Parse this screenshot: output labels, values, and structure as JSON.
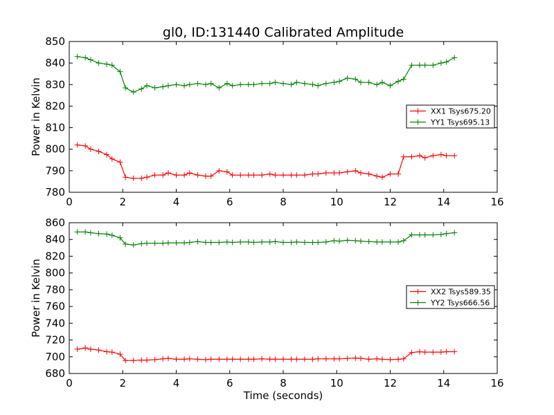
{
  "title": "gl0, ID:131440 Calibrated Amplitude",
  "chart_data": [
    {
      "type": "line",
      "title": "gl0, ID:131440 Calibrated Amplitude",
      "xlabel": "",
      "ylabel": "Power in Kelvin",
      "xlim": [
        0,
        16
      ],
      "ylim": [
        780,
        850
      ],
      "xticks": [
        0,
        2,
        4,
        6,
        8,
        10,
        12,
        14,
        16
      ],
      "yticks": [
        780,
        790,
        800,
        810,
        820,
        830,
        840,
        850
      ],
      "grid": false,
      "legend_position": "center-right",
      "x": [
        0.3,
        0.6,
        0.8,
        1.1,
        1.4,
        1.6,
        1.9,
        2.1,
        2.4,
        2.7,
        2.9,
        3.2,
        3.5,
        3.7,
        4.0,
        4.3,
        4.5,
        4.8,
        5.1,
        5.3,
        5.6,
        5.9,
        6.1,
        6.4,
        6.7,
        6.9,
        7.2,
        7.5,
        7.7,
        8.0,
        8.3,
        8.5,
        8.8,
        9.1,
        9.3,
        9.6,
        9.9,
        10.1,
        10.4,
        10.7,
        10.9,
        11.2,
        11.5,
        11.7,
        12.0,
        12.3,
        12.5,
        12.8,
        13.1,
        13.3,
        13.6,
        13.9,
        14.1,
        14.4
      ],
      "series": [
        {
          "name": "XX1 Tsys675.20",
          "color": "#ff0000",
          "values": [
            802,
            801.5,
            800,
            799,
            797.5,
            795.5,
            794,
            787,
            786.5,
            786.5,
            787,
            788,
            788,
            789,
            788,
            788,
            789,
            788,
            787.5,
            787.5,
            790,
            789.5,
            788,
            788,
            788,
            788,
            788,
            788.5,
            788,
            788,
            788,
            788,
            788,
            788.5,
            788.5,
            789,
            789,
            789,
            789.5,
            790,
            789,
            788.5,
            787.5,
            787,
            788.5,
            788.5,
            796.5,
            796.5,
            797,
            796,
            797,
            797.5,
            797,
            797
          ]
        },
        {
          "name": "YY1 Tsys695.13",
          "color": "#008000",
          "values": [
            843,
            842.5,
            841.5,
            840,
            839.5,
            839,
            836,
            828.5,
            826.5,
            828,
            829.5,
            828.5,
            829,
            829.5,
            830,
            829.5,
            830,
            830.5,
            830,
            830.5,
            828.5,
            830.5,
            829.5,
            830,
            830,
            830,
            830.5,
            830.5,
            831,
            830.5,
            830,
            831,
            830.5,
            830,
            829.5,
            830.5,
            831,
            831.5,
            833,
            832.5,
            831,
            831,
            830,
            831,
            829.5,
            831.5,
            832.5,
            839,
            839,
            839,
            839,
            840,
            840.5,
            842.5
          ]
        }
      ]
    },
    {
      "type": "line",
      "title": "",
      "xlabel": "Time (seconds)",
      "ylabel": "Power in Kelvin",
      "xlim": [
        0,
        16
      ],
      "ylim": [
        680,
        860
      ],
      "xticks": [
        0,
        2,
        4,
        6,
        8,
        10,
        12,
        14,
        16
      ],
      "yticks": [
        680,
        700,
        720,
        740,
        760,
        780,
        800,
        820,
        840,
        860
      ],
      "grid": false,
      "legend_position": "center-right",
      "x": [
        0.3,
        0.6,
        0.8,
        1.1,
        1.4,
        1.6,
        1.9,
        2.1,
        2.4,
        2.7,
        2.9,
        3.2,
        3.5,
        3.7,
        4.0,
        4.3,
        4.5,
        4.8,
        5.1,
        5.3,
        5.6,
        5.9,
        6.1,
        6.4,
        6.7,
        6.9,
        7.2,
        7.5,
        7.7,
        8.0,
        8.3,
        8.5,
        8.8,
        9.1,
        9.3,
        9.6,
        9.9,
        10.1,
        10.4,
        10.7,
        10.9,
        11.2,
        11.5,
        11.7,
        12.0,
        12.3,
        12.5,
        12.8,
        13.1,
        13.3,
        13.6,
        13.9,
        14.1,
        14.4
      ],
      "series": [
        {
          "name": "XX2 Tsys589.35",
          "color": "#ff0000",
          "values": [
            709,
            710.5,
            709,
            708,
            706,
            705.5,
            703,
            695.5,
            695.5,
            696,
            696,
            696.5,
            697.5,
            698,
            697,
            697,
            697.5,
            697,
            696.5,
            697,
            697,
            697,
            697,
            697,
            697,
            697,
            697.5,
            697,
            697,
            697,
            697,
            697,
            697,
            697,
            697.5,
            697.5,
            697.5,
            697.5,
            698,
            698.5,
            698,
            697,
            697.5,
            697,
            696.5,
            697,
            697.5,
            705,
            706,
            705.5,
            705.5,
            705.5,
            706,
            706
          ]
        },
        {
          "name": "YY2 Tsys666.56",
          "color": "#008000",
          "values": [
            849,
            849,
            848,
            847,
            846.5,
            845,
            842,
            834.5,
            833.5,
            835,
            835.5,
            835.5,
            835.5,
            836,
            836,
            836,
            836.5,
            837.5,
            836.5,
            836.5,
            836.5,
            837,
            836.5,
            837,
            837,
            836.5,
            837,
            837,
            837.5,
            836.5,
            836.5,
            837,
            836.5,
            836.5,
            836.5,
            837,
            838.5,
            838,
            839,
            838.5,
            838,
            837.5,
            837,
            837,
            837,
            837,
            838.5,
            845.5,
            845.5,
            845.5,
            845.5,
            846,
            847,
            848
          ]
        }
      ]
    }
  ]
}
